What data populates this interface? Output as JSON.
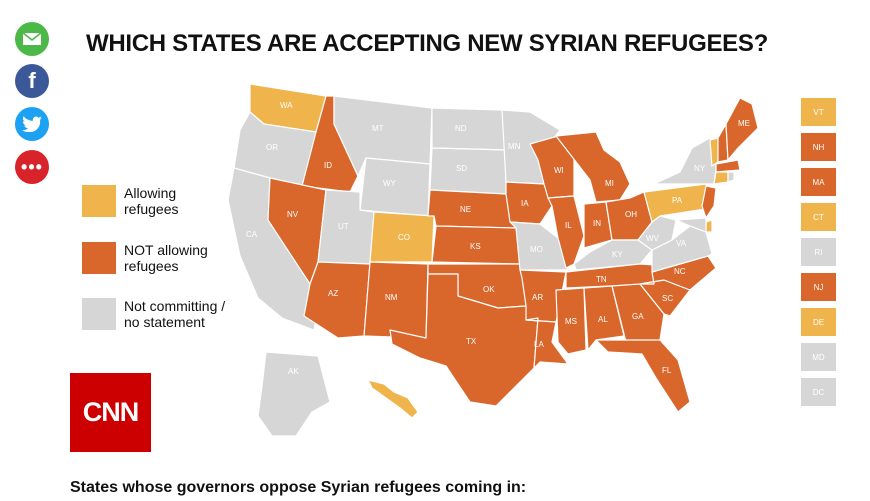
{
  "title": "WHICH STATES ARE ACCEPTING NEW SYRIAN REFUGEES?",
  "footer": "States whose governors oppose Syrian refugees coming in:",
  "colors": {
    "allowing": "#F0B44C",
    "not_allowing": "#D9662A",
    "not_committing": "#D6D6D6",
    "cnn_red": "#CC0000"
  },
  "legend": [
    {
      "key": "allowing",
      "label": "Allowing\nrefugees"
    },
    {
      "key": "not_allowing",
      "label": "NOT allowing\nrefugees"
    },
    {
      "key": "not_committing",
      "label": "Not committing /\nno statement"
    }
  ],
  "logo": "CNN",
  "share": [
    {
      "icon": "email-icon",
      "color": "#4CB848"
    },
    {
      "icon": "facebook-icon",
      "color": "#3B5998"
    },
    {
      "icon": "twitter-icon",
      "color": "#1DA1F2"
    },
    {
      "icon": "more-icon",
      "color": "#D9232A"
    }
  ],
  "states": {
    "WA": "allowing",
    "OR": "not_committing",
    "CA": "not_committing",
    "ID": "not_allowing",
    "NV": "not_allowing",
    "MT": "not_committing",
    "WY": "not_committing",
    "UT": "not_committing",
    "AZ": "not_allowing",
    "CO": "allowing",
    "NM": "not_allowing",
    "ND": "not_committing",
    "SD": "not_committing",
    "NE": "not_allowing",
    "KS": "not_allowing",
    "OK": "not_allowing",
    "TX": "not_allowing",
    "MN": "not_committing",
    "IA": "not_allowing",
    "MO": "not_committing",
    "AR": "not_allowing",
    "LA": "not_allowing",
    "WI": "not_allowing",
    "IL": "not_allowing",
    "MI": "not_allowing",
    "IN": "not_allowing",
    "OH": "not_allowing",
    "KY": "not_committing",
    "TN": "not_allowing",
    "MS": "not_allowing",
    "AL": "not_allowing",
    "GA": "not_allowing",
    "FL": "not_allowing",
    "SC": "not_allowing",
    "NC": "not_allowing",
    "VA": "not_committing",
    "WV": "not_committing",
    "PA": "allowing",
    "NY": "not_committing",
    "ME": "not_allowing",
    "AK": "not_committing",
    "HI": "allowing"
  },
  "sidebar_states": [
    {
      "code": "VT",
      "status": "allowing"
    },
    {
      "code": "NH",
      "status": "not_allowing"
    },
    {
      "code": "MA",
      "status": "not_allowing"
    },
    {
      "code": "CT",
      "status": "allowing"
    },
    {
      "code": "RI",
      "status": "not_committing"
    },
    {
      "code": "NJ",
      "status": "not_allowing"
    },
    {
      "code": "DE",
      "status": "allowing"
    },
    {
      "code": "MD",
      "status": "not_committing"
    },
    {
      "code": "DC",
      "status": "not_committing"
    }
  ]
}
